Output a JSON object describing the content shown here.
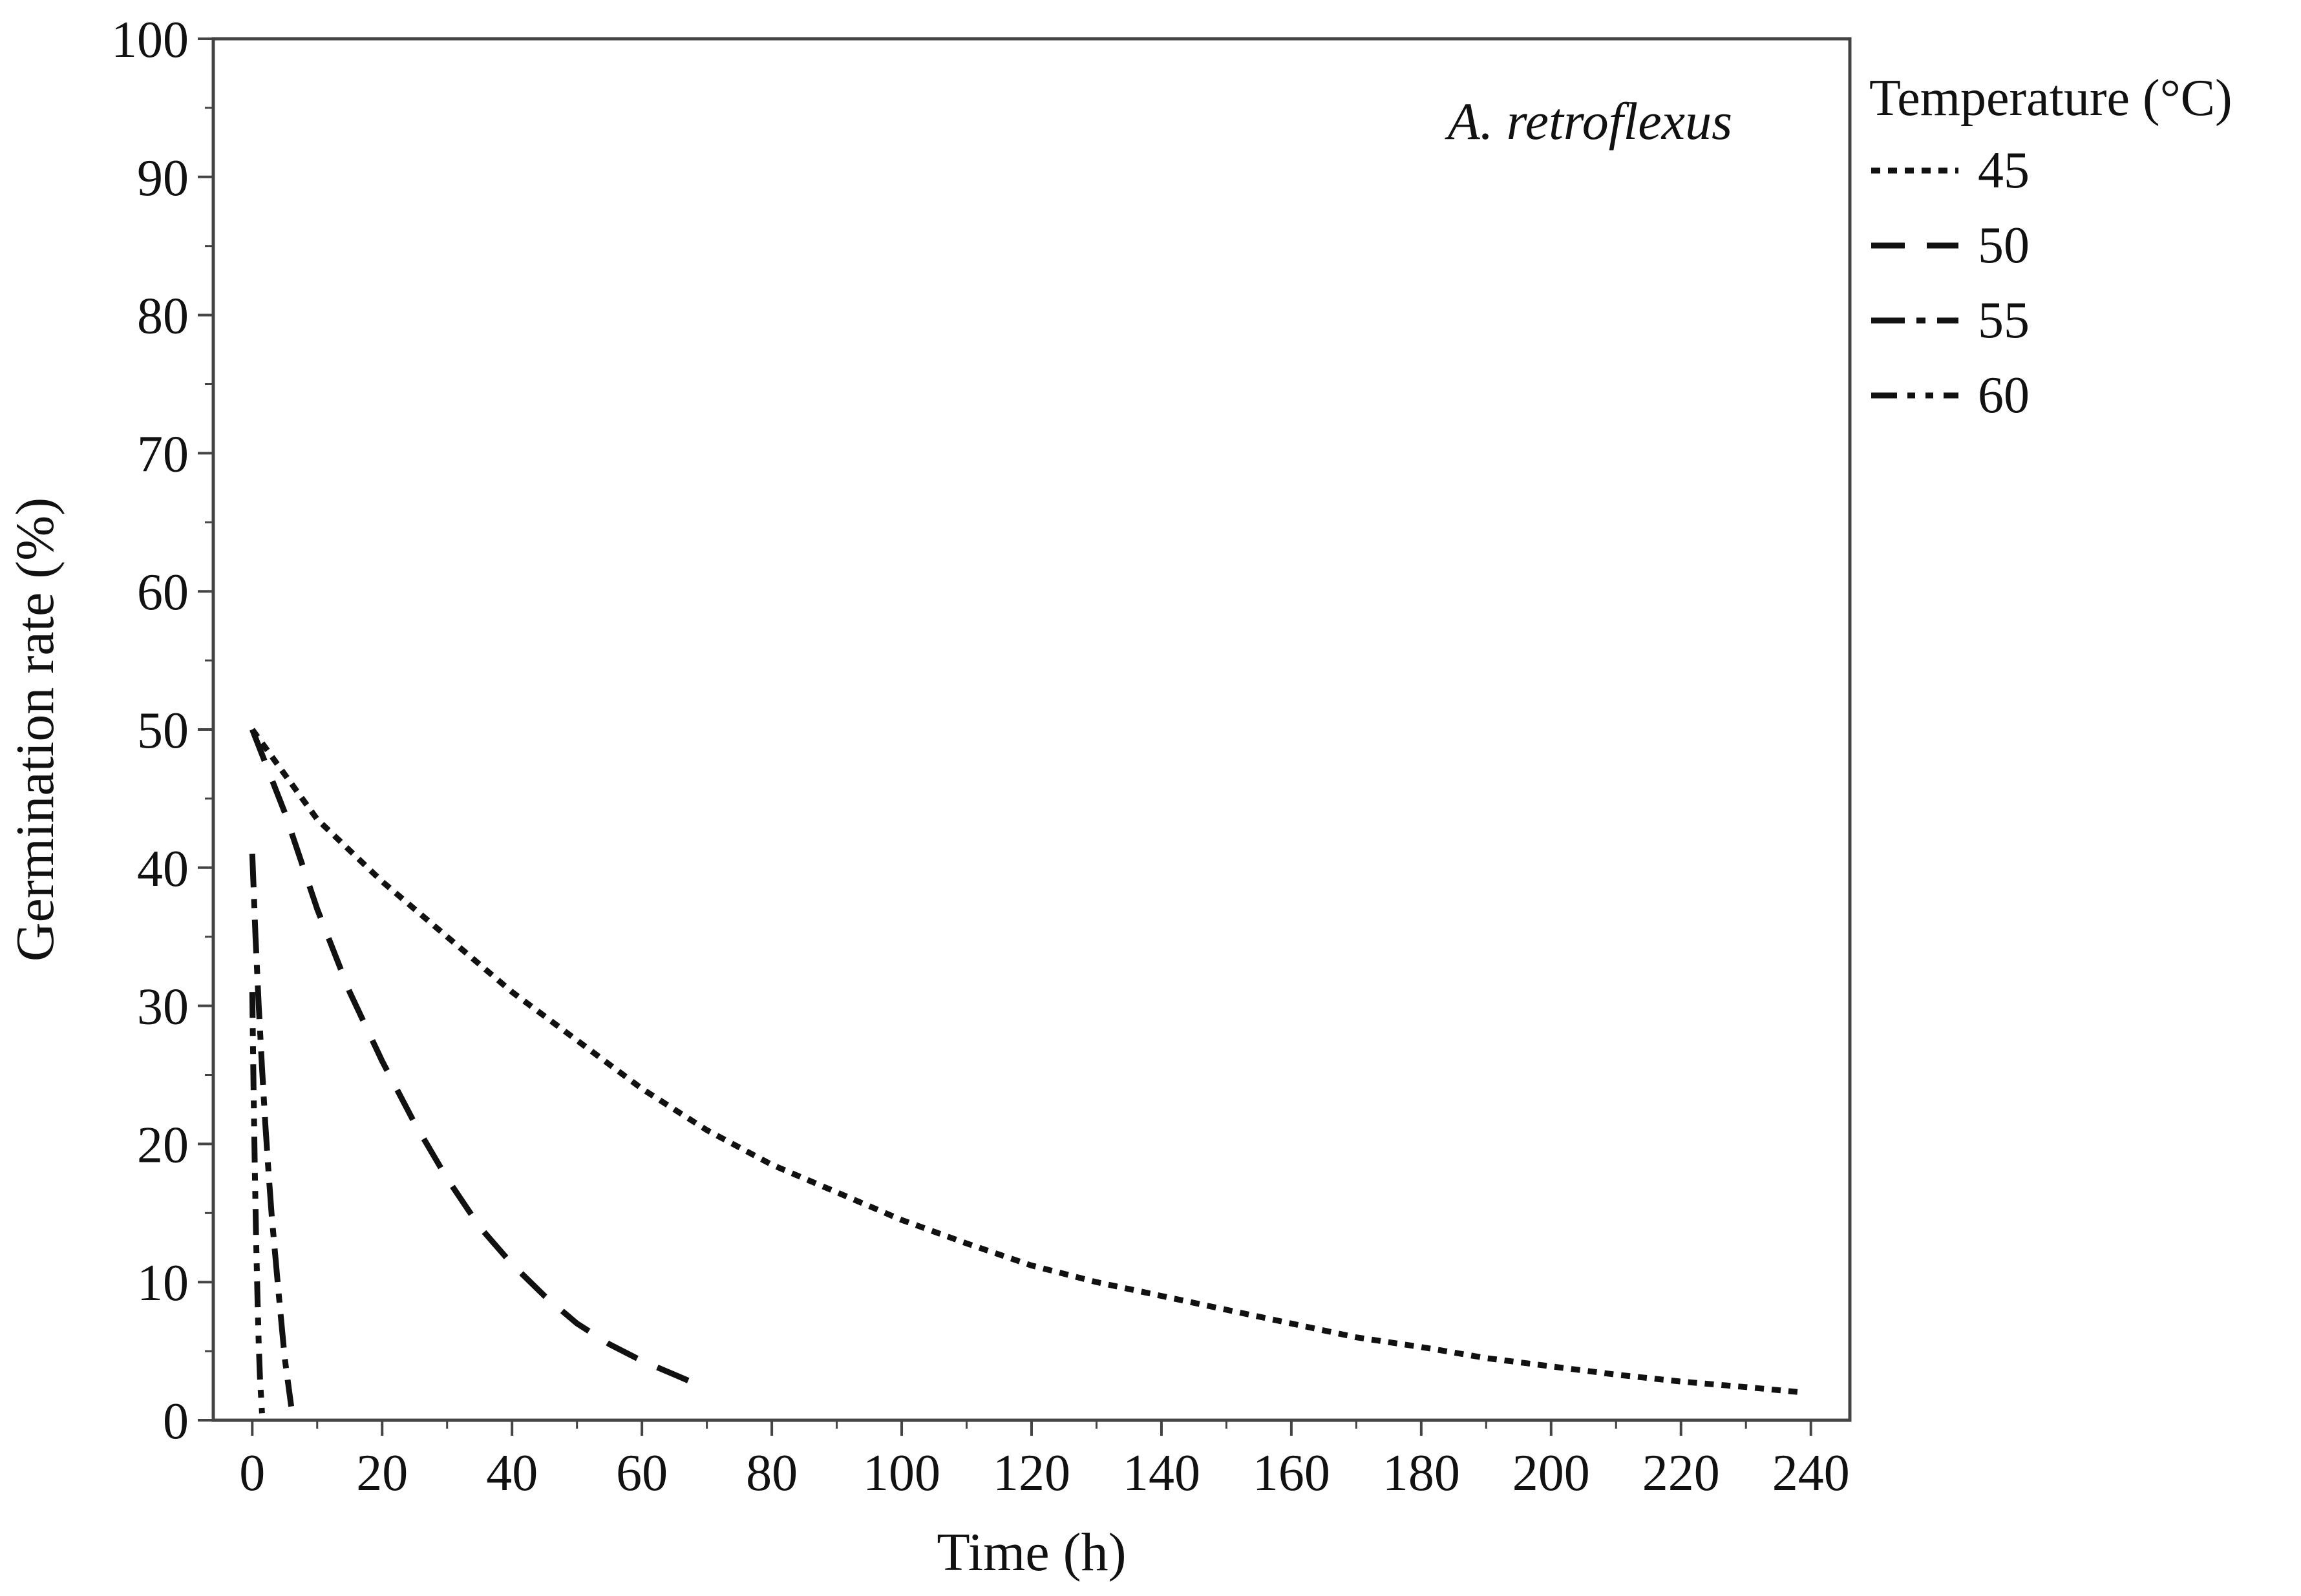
{
  "chart_data": {
    "type": "line",
    "title": "",
    "annotation": "A. retroflexus",
    "xlabel": "Time (h)",
    "ylabel": "Germination rate (%)",
    "xlim": [
      -6,
      246
    ],
    "ylim": [
      0,
      100
    ],
    "xticks": [
      0,
      20,
      40,
      60,
      80,
      100,
      120,
      140,
      160,
      180,
      200,
      220,
      240
    ],
    "xtick_labels": [
      "0",
      "20",
      "40",
      "60",
      "80",
      "100",
      "120",
      "140",
      "160",
      "180",
      "200",
      "220",
      "240"
    ],
    "yticks": [
      0,
      10,
      20,
      30,
      40,
      50,
      60,
      70,
      80,
      90,
      100
    ],
    "ytick_labels": [
      "0",
      "10",
      "20",
      "30",
      "40",
      "50",
      "60",
      "70",
      "80",
      "90",
      "100"
    ],
    "grid": false,
    "legend": {
      "title": "Temperature (°C)",
      "placement": "right",
      "entries": [
        "45",
        "50",
        "55",
        "60"
      ]
    },
    "series": [
      {
        "name": "45",
        "style": "dotted",
        "x": [
          0,
          10,
          20,
          30,
          40,
          50,
          60,
          70,
          80,
          90,
          100,
          110,
          120,
          130,
          140,
          150,
          160,
          170,
          180,
          190,
          200,
          210,
          220,
          230,
          239
        ],
        "y": [
          50,
          43.5,
          39,
          35,
          31,
          27.5,
          24,
          21,
          18.5,
          16.5,
          14.5,
          12.8,
          11.2,
          10,
          9,
          8,
          7,
          6,
          5.3,
          4.5,
          3.9,
          3.3,
          2.8,
          2.4,
          2
        ]
      },
      {
        "name": "50",
        "style": "dashed",
        "x": [
          0,
          5,
          10,
          15,
          20,
          25,
          30,
          35,
          40,
          45,
          50,
          55,
          60,
          65,
          68
        ],
        "y": [
          50,
          44,
          37,
          31,
          26,
          21.5,
          17.5,
          14,
          11.3,
          9,
          7,
          5.5,
          4.3,
          3.3,
          2.7
        ]
      },
      {
        "name": "55",
        "style": "dash-dot",
        "x": [
          0,
          0.5,
          1,
          1.5,
          2,
          2.5,
          3,
          4,
          5,
          6
        ],
        "y": [
          41,
          35,
          30,
          25.5,
          21.5,
          18,
          14.8,
          9.5,
          4.5,
          1
        ]
      },
      {
        "name": "60",
        "style": "dash-dot-dot",
        "x": [
          0,
          0.2,
          0.4,
          0.6,
          0.8,
          1,
          1.2,
          1.5
        ],
        "y": [
          31,
          24,
          18,
          13,
          9,
          5.5,
          3,
          0.5
        ]
      }
    ]
  }
}
